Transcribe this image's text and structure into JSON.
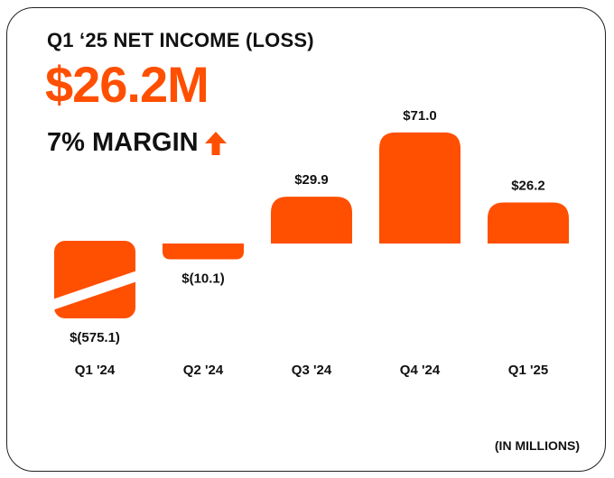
{
  "header": {
    "title": "Q1 ‘25 NET INCOME (LOSS)",
    "value": "$26.2M",
    "margin_label": "7% MARGIN",
    "margin_icon": "arrow-up-icon"
  },
  "footnote": "(IN MILLIONS)",
  "colors": {
    "accent": "#FF4F00",
    "text": "#111111",
    "border": "#222222"
  },
  "chart_data": {
    "type": "bar",
    "title": "Q1 ‘25 NET INCOME (LOSS)",
    "categories": [
      "Q1 '24",
      "Q2 '24",
      "Q3 '24",
      "Q4 '24",
      "Q1 '25"
    ],
    "values": [
      -575.1,
      -10.1,
      29.9,
      71.0,
      26.2
    ],
    "labels": [
      "$(575.1)",
      "$(10.1)",
      "$29.9",
      "$71.0",
      "$26.2"
    ],
    "broken_axis": {
      "category": "Q1 '24",
      "note": "bar truncated with diagonal break"
    },
    "ylabel": "",
    "xlabel": "",
    "grid": false,
    "legend": "none"
  }
}
